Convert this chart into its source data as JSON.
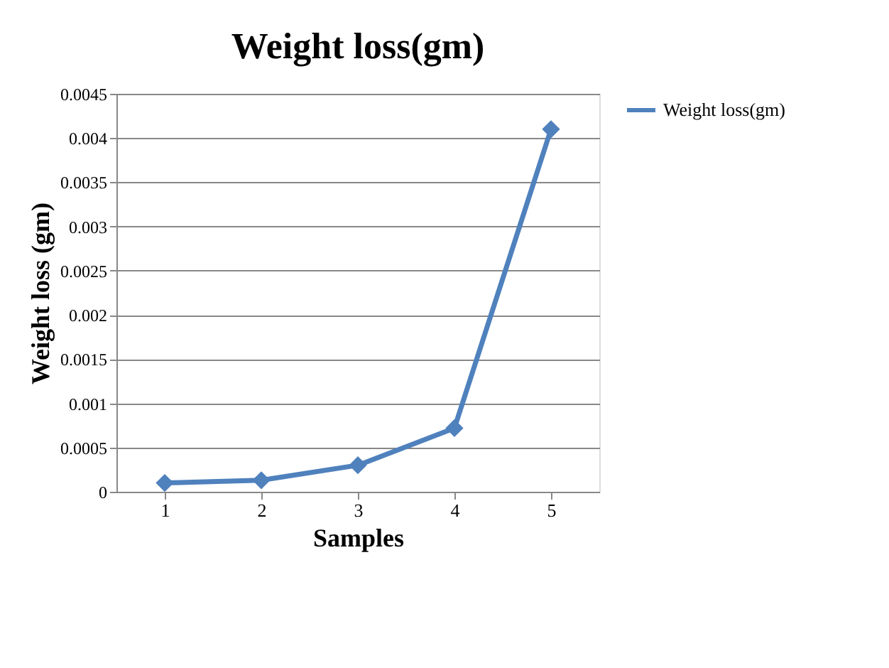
{
  "chart_data": {
    "type": "line",
    "title": "Weight loss(gm)",
    "xlabel": "Samples",
    "ylabel": "Weight loss (gm)",
    "categories": [
      "1",
      "2",
      "3",
      "4",
      "5"
    ],
    "series": [
      {
        "name": "Weight loss(gm)",
        "color": "#4f81bd",
        "values": [
          0.0001,
          0.00013,
          0.0003,
          0.00072,
          0.0041
        ]
      }
    ],
    "ylim": [
      0,
      0.0045
    ],
    "yticks": [
      0,
      0.0005,
      0.001,
      0.0015,
      0.002,
      0.0025,
      0.003,
      0.0035,
      0.004,
      0.0045
    ],
    "grid": "y",
    "legend": "right",
    "marker": "diamond",
    "line_style": "solid"
  }
}
